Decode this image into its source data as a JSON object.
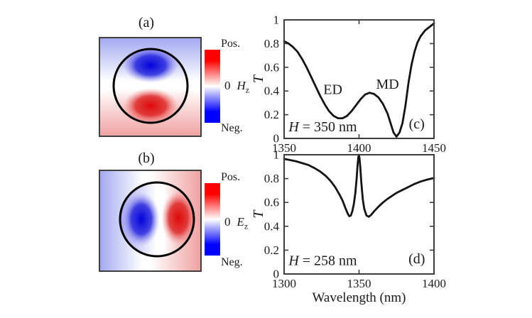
{
  "figure": {
    "background": "#ffffff"
  },
  "colors": {
    "positive_red": "#ff0000",
    "negative_blue": "#0000ff",
    "deep_blue": "#0202dd",
    "deep_red": "#e00808",
    "light_blue_bg": "#a0a6f0",
    "light_red_bg": "#f0a0a0",
    "curve": "#141414",
    "axis": "#3d3d3d"
  },
  "panel_a": {
    "label": "(a)",
    "field_symbol": "H",
    "field_subscript": "z",
    "colorbar": {
      "positive_label": "Pos.",
      "zero_label": "0",
      "negative_label": "Neg."
    }
  },
  "panel_b": {
    "label": "(b)",
    "field_symbol": "E",
    "field_subscript": "z",
    "colorbar": {
      "positive_label": "Pos.",
      "zero_label": "0",
      "negative_label": "Neg."
    }
  },
  "chart_data": [
    {
      "id": "c",
      "type": "line",
      "panel_label": "(c)",
      "title": "Transmission spectrum, H = 350 nm",
      "ylabel": "T",
      "xlabel": "",
      "xlim": [
        1350,
        1450
      ],
      "ylim": [
        0,
        1
      ],
      "xticks": [
        1350,
        1400,
        1450
      ],
      "yticks": [
        0,
        0.2,
        0.4,
        0.6,
        0.8,
        1
      ],
      "ytick_labels": [
        "0",
        "0.2",
        "0.4",
        "0.6",
        "0.8",
        "1"
      ],
      "grid": false,
      "annotations": [
        {
          "x": 1382.5,
          "y": 0.41,
          "anchor": "middle",
          "parts": [
            {
              "text": "ED"
            }
          ]
        },
        {
          "x": 1419,
          "y": 0.455,
          "anchor": "middle",
          "parts": [
            {
              "text": "MD"
            }
          ]
        },
        {
          "x": 1353,
          "y": 0.095,
          "anchor": "start",
          "parts": [
            {
              "text": "H",
              "italic": true
            },
            {
              "text": " = 350 nm"
            }
          ]
        },
        {
          "x": 1438.5,
          "y": 0.12,
          "anchor": "middle",
          "parts": [
            {
              "text": "(c)"
            }
          ]
        }
      ],
      "series": [
        {
          "name": "transmission",
          "x": [
            1350,
            1353,
            1356,
            1359,
            1362,
            1365,
            1368,
            1371,
            1374,
            1377,
            1380,
            1383,
            1386,
            1389,
            1392,
            1395,
            1398,
            1401,
            1404,
            1407,
            1410,
            1413,
            1416,
            1419,
            1421,
            1423,
            1425,
            1427,
            1429,
            1431,
            1433,
            1435,
            1437,
            1439,
            1441,
            1444,
            1447,
            1450
          ],
          "y": [
            0.82,
            0.8,
            0.77,
            0.73,
            0.67,
            0.6,
            0.52,
            0.44,
            0.36,
            0.29,
            0.23,
            0.19,
            0.17,
            0.17,
            0.19,
            0.23,
            0.28,
            0.33,
            0.37,
            0.385,
            0.375,
            0.345,
            0.29,
            0.21,
            0.13,
            0.05,
            0.015,
            0.05,
            0.13,
            0.28,
            0.47,
            0.62,
            0.73,
            0.81,
            0.86,
            0.91,
            0.94,
            0.97
          ]
        }
      ]
    },
    {
      "id": "d",
      "type": "line",
      "panel_label": "(d)",
      "title": "Transmission spectrum, H = 258 nm",
      "ylabel": "T",
      "xlabel": "Wavelength (nm)",
      "xlim": [
        1300,
        1400
      ],
      "ylim": [
        0,
        1
      ],
      "xticks": [
        1300,
        1350,
        1400
      ],
      "yticks": [
        0,
        0.2,
        0.4,
        0.6,
        0.8,
        1
      ],
      "ytick_labels": [
        "0",
        "0.2",
        "0.4",
        "0.6",
        "0.8",
        "1"
      ],
      "grid": false,
      "annotations": [
        {
          "x": 1303,
          "y": 0.11,
          "anchor": "start",
          "parts": [
            {
              "text": "H",
              "italic": true
            },
            {
              "text": " = 258 nm"
            }
          ]
        },
        {
          "x": 1388.5,
          "y": 0.125,
          "anchor": "middle",
          "parts": [
            {
              "text": "(d)"
            }
          ]
        }
      ],
      "series": [
        {
          "name": "transmission",
          "x": [
            1300,
            1304,
            1308,
            1312,
            1316,
            1320,
            1324,
            1328,
            1331,
            1334,
            1337,
            1339,
            1341,
            1342.5,
            1343.5,
            1344.5,
            1345.5,
            1346.5,
            1347.5,
            1348.4,
            1349,
            1349.5,
            1349.9,
            1350.3,
            1350.8,
            1351.5,
            1352.5,
            1353.5,
            1355,
            1356.5,
            1358,
            1360,
            1363,
            1366,
            1369,
            1372,
            1375,
            1379,
            1383,
            1387,
            1391,
            1395,
            1400
          ],
          "y": [
            0.965,
            0.955,
            0.945,
            0.93,
            0.915,
            0.89,
            0.86,
            0.82,
            0.78,
            0.73,
            0.665,
            0.615,
            0.55,
            0.505,
            0.485,
            0.49,
            0.525,
            0.585,
            0.675,
            0.8,
            0.91,
            0.975,
            1.0,
            0.97,
            0.9,
            0.77,
            0.625,
            0.545,
            0.49,
            0.48,
            0.495,
            0.525,
            0.565,
            0.6,
            0.63,
            0.655,
            0.68,
            0.705,
            0.73,
            0.755,
            0.775,
            0.79,
            0.805
          ]
        }
      ]
    }
  ]
}
